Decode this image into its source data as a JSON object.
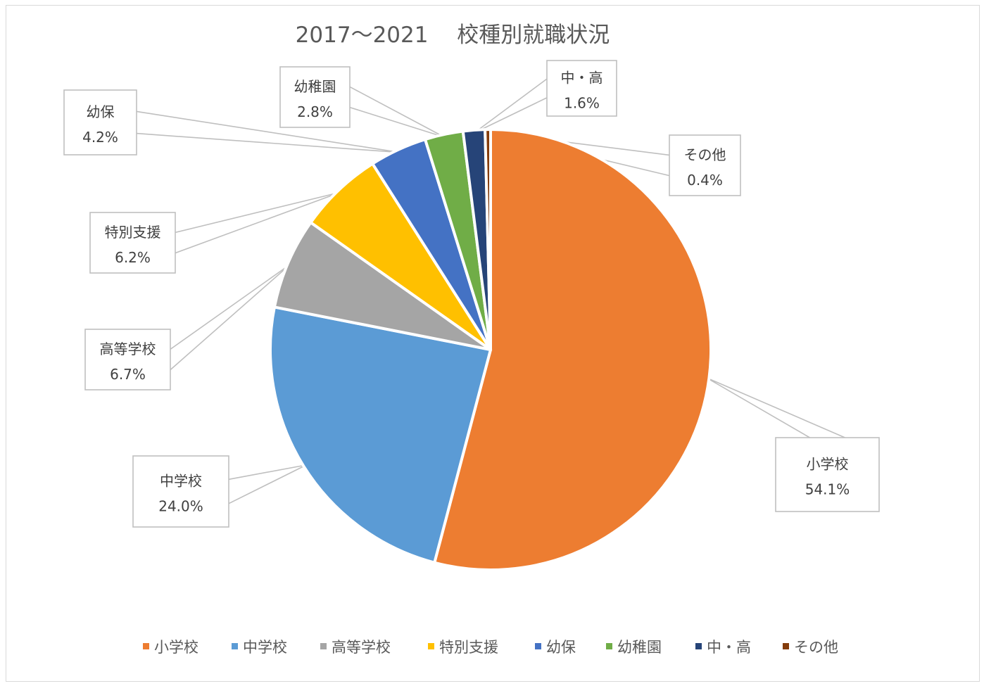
{
  "chart_data": {
    "type": "pie",
    "title": "2017～2021　 校種別就職状況",
    "categories": [
      "小学校",
      "中学校",
      "高等学校",
      "特別支援",
      "幼保",
      "幼稚園",
      "中・高",
      "その他"
    ],
    "values": [
      54.1,
      24.0,
      6.7,
      6.2,
      4.2,
      2.8,
      1.6,
      0.4
    ],
    "data_labels": [
      "54.1%",
      "24.0%",
      "6.7%",
      "6.2%",
      "4.2%",
      "2.8%",
      "1.6%",
      "0.4%"
    ],
    "colors": [
      "#ED7D31",
      "#5B9BD5",
      "#A5A5A5",
      "#FFC000",
      "#4472C4",
      "#70AD47",
      "#264478",
      "#843C0C"
    ],
    "start_angle_deg": 0,
    "direction": "clockwise",
    "legend_position": "bottom"
  }
}
